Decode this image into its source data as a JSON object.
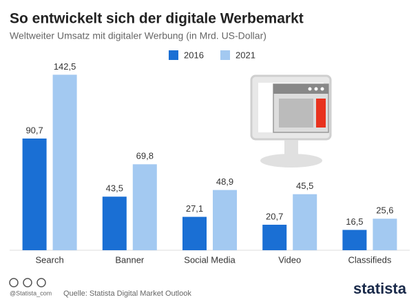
{
  "chart_data": {
    "type": "bar",
    "title": "So entwickelt sich der digitale Werbemarkt",
    "subtitle": "Weltweiter Umsatz mit digitaler Werbung (in Mrd. US-Dollar)",
    "categories": [
      "Search",
      "Banner",
      "Social Media",
      "Video",
      "Classifieds"
    ],
    "series": [
      {
        "name": "2016",
        "color": "#1a6fd4",
        "values": [
          90.7,
          43.5,
          27.1,
          20.7,
          16.5
        ],
        "value_labels": [
          "90,7",
          "43,5",
          "27,1",
          "20,7",
          "16,5"
        ]
      },
      {
        "name": "2021",
        "color": "#a3c9f1",
        "values": [
          142.5,
          69.8,
          48.9,
          45.5,
          25.6
        ],
        "value_labels": [
          "142,5",
          "69,8",
          "48,9",
          "45,5",
          "25,6"
        ]
      }
    ],
    "ylim": [
      0,
      150
    ],
    "source": "Quelle: Statista Digital Market Outlook",
    "handle": "@Statista_com",
    "brand": "statista"
  }
}
